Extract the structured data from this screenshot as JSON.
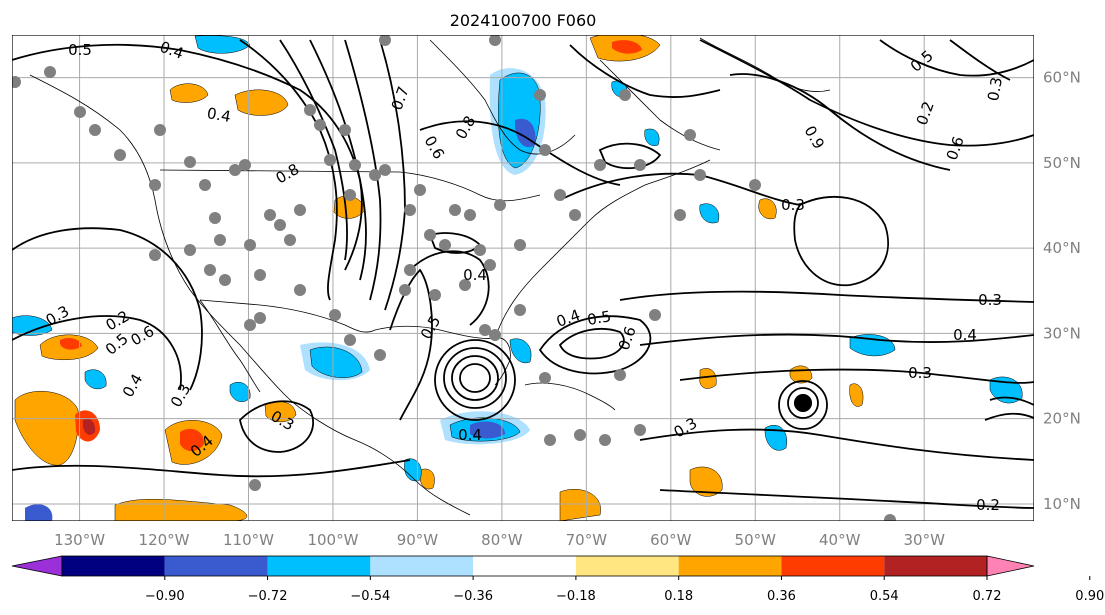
{
  "title": "2024100700 F060",
  "map": {
    "lon_range": [
      -138,
      -17
    ],
    "lat_range": [
      8,
      65
    ],
    "lon_ticks": [
      {
        "lon": -130,
        "label": "130°W"
      },
      {
        "lon": -120,
        "label": "120°W"
      },
      {
        "lon": -110,
        "label": "110°W"
      },
      {
        "lon": -100,
        "label": "100°W"
      },
      {
        "lon": -90,
        "label": "90°W"
      },
      {
        "lon": -80,
        "label": "80°W"
      },
      {
        "lon": -70,
        "label": "70°W"
      },
      {
        "lon": -60,
        "label": "60°W"
      },
      {
        "lon": -50,
        "label": "50°W"
      },
      {
        "lon": -40,
        "label": "40°W"
      },
      {
        "lon": -30,
        "label": "30°W"
      }
    ],
    "lat_ticks": [
      {
        "lat": 10,
        "label": "10°N"
      },
      {
        "lat": 20,
        "label": "20°N"
      },
      {
        "lat": 30,
        "label": "30°N"
      },
      {
        "lat": 40,
        "label": "40°N"
      },
      {
        "lat": 50,
        "label": "50°N"
      },
      {
        "lat": 60,
        "label": "60°N"
      }
    ],
    "gridlines": true,
    "land_outline_color": "#000000",
    "marker_color": "#808080"
  },
  "colorbar": {
    "ticks": [
      "−0.90",
      "−0.72",
      "−0.54",
      "−0.36",
      "−0.18",
      "0.18",
      "0.36",
      "0.54",
      "0.72",
      "0.90"
    ],
    "colors": [
      "#9b30d9",
      "#000080",
      "#3a5bd0",
      "#00bfff",
      "#aee0ff",
      "#ffffff",
      "#ffe680",
      "#ffa500",
      "#ff3c00",
      "#b22222",
      "#ff82b4"
    ],
    "extend": "both"
  },
  "contour_labels": [
    "0.5",
    "0.4",
    "0.4",
    "0.8",
    "0.7",
    "0.8",
    "0.6",
    "0.4",
    "0.5",
    "0.9",
    "0.3",
    "0.3",
    "0.4",
    "0.5",
    "0.6",
    "0.4",
    "0.3",
    "0.2",
    "0.3",
    "0.4",
    "0.4",
    "0.3",
    "0.6",
    "0.5",
    "0.4",
    "0.3",
    "0.3",
    "0.2",
    "0.5",
    "0.3",
    "0.2",
    "0.6"
  ],
  "fill_colors": {
    "orange": "#ffa500",
    "red": "#ff3c00",
    "darkred": "#b22222",
    "lightblue": "#aee0ff",
    "blue": "#00bfff",
    "midblue": "#3a5bd0"
  }
}
